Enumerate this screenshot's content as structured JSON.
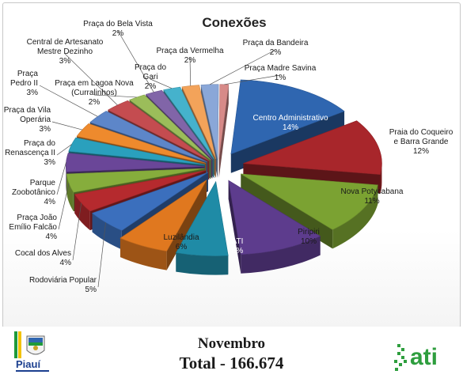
{
  "chart_data": {
    "type": "pie",
    "title": "Conexões",
    "slices": [
      {
        "label": "Centro Administrativo",
        "value": 14,
        "display": "14%",
        "color": "#2f66b0"
      },
      {
        "label": "Praia do Coqueiro e Barra Grande",
        "value": 12,
        "display": "12%",
        "color": "#a8262b"
      },
      {
        "label": "Nova Potycabana",
        "value": 11,
        "display": "11%",
        "color": "#7ba232"
      },
      {
        "label": "Piripiri",
        "value": 10,
        "display": "10%",
        "color": "#5d3c8d"
      },
      {
        "label": "ATI",
        "value": 6,
        "display": "6%",
        "color": "#1f8ba6"
      },
      {
        "label": "Luzilândia",
        "value": 6,
        "display": "6%",
        "color": "#e0781f"
      },
      {
        "label": "Rodoviária Popular",
        "value": 5,
        "display": "5%",
        "color": "#3b6fbd"
      },
      {
        "label": "Cocal dos Alves",
        "value": 4,
        "display": "4%",
        "color": "#b52a2e"
      },
      {
        "label": "Praça João Emílio Falcão",
        "value": 4,
        "display": "4%",
        "color": "#86ad3c"
      },
      {
        "label": "Parque Zoobotânico",
        "value": 4,
        "display": "4%",
        "color": "#6a4698"
      },
      {
        "label": "Praça do Renascença II",
        "value": 3,
        "display": "3%",
        "color": "#2aa0bd"
      },
      {
        "label": "Praça da Vila Operária",
        "value": 3,
        "display": "3%",
        "color": "#ee8a2d"
      },
      {
        "label": "Praça Pedro II",
        "value": 3,
        "display": "3%",
        "color": "#5d86c9"
      },
      {
        "label": "Central de Artesanato Mestre Dezinho",
        "value": 3,
        "display": "3%",
        "color": "#c44c50"
      },
      {
        "label": "Praça em Lagoa Nova (Curralinhos)",
        "value": 2,
        "display": "2%",
        "color": "#9bbd5a"
      },
      {
        "label": "Praça do Bela Vista",
        "value": 2,
        "display": "2%",
        "color": "#8165a8"
      },
      {
        "label": "Praça do Gari",
        "value": 2,
        "display": "2%",
        "color": "#45b2cc"
      },
      {
        "label": "Praça da Vermelha",
        "value": 2,
        "display": "2%",
        "color": "#f3a35a"
      },
      {
        "label": "Praça da Bandeira",
        "value": 2,
        "display": "2%",
        "color": "#8aa7d8"
      },
      {
        "label": "Praça Madre Savina",
        "value": 1,
        "display": "1%",
        "color": "#d78a88"
      }
    ]
  },
  "footer": {
    "month": "Novembro",
    "total": "Total - 166.674"
  },
  "logos": {
    "left_logo_text": "Piauí",
    "right_logo_text": "ati"
  }
}
